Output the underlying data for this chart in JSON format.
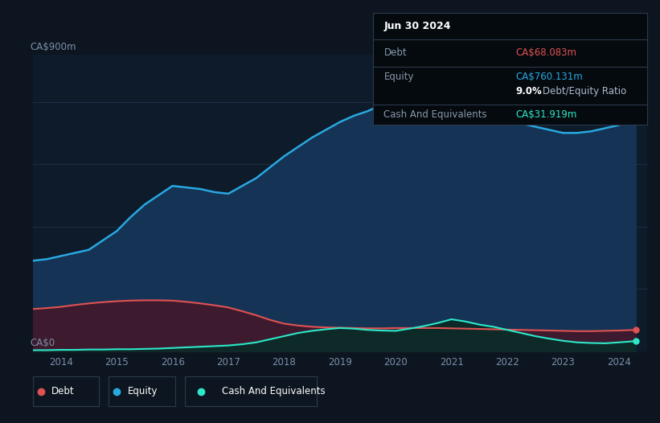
{
  "background_color": "#0d1520",
  "plot_bg_color": "#0d1b2a",
  "title_box": {
    "date": "Jun 30 2024",
    "debt_label": "Debt",
    "debt_value": "CA$68.083m",
    "debt_color": "#e05252",
    "equity_label": "Equity",
    "equity_value": "CA$760.131m",
    "equity_color": "#29a8e0",
    "ratio_bold": "9.0%",
    "ratio_text": "Debt/Equity Ratio",
    "cash_label": "Cash And Equivalents",
    "cash_value": "CA$31.919m",
    "cash_color": "#2de8c8"
  },
  "ylabel_top": "CA$900m",
  "ylabel_bottom": "CA$0",
  "x_ticks": [
    "2014",
    "2015",
    "2016",
    "2017",
    "2018",
    "2019",
    "2020",
    "2021",
    "2022",
    "2023",
    "2024"
  ],
  "legend": [
    {
      "label": "Debt",
      "color": "#e05252"
    },
    {
      "label": "Equity",
      "color": "#29a8e0"
    },
    {
      "label": "Cash And Equivalents",
      "color": "#2de8c8"
    }
  ],
  "equity_color": "#29a8e0",
  "equity_fill": "#153355",
  "debt_color": "#e05252",
  "debt_fill": "#3d1a2e",
  "cash_color": "#2de8c8",
  "cash_fill": "#0d2a28",
  "grid_color": "#1e3048",
  "years": [
    2013.5,
    2013.75,
    2014.0,
    2014.25,
    2014.5,
    2014.75,
    2015.0,
    2015.25,
    2015.5,
    2015.75,
    2016.0,
    2016.25,
    2016.5,
    2016.75,
    2017.0,
    2017.25,
    2017.5,
    2017.75,
    2018.0,
    2018.25,
    2018.5,
    2018.75,
    2019.0,
    2019.25,
    2019.5,
    2019.75,
    2020.0,
    2020.25,
    2020.5,
    2020.75,
    2021.0,
    2021.25,
    2021.5,
    2021.75,
    2022.0,
    2022.25,
    2022.5,
    2022.75,
    2023.0,
    2023.25,
    2023.5,
    2023.75,
    2024.0,
    2024.3
  ],
  "equity": [
    290,
    295,
    305,
    315,
    325,
    355,
    385,
    430,
    470,
    500,
    530,
    525,
    520,
    510,
    505,
    530,
    555,
    590,
    625,
    655,
    685,
    710,
    735,
    755,
    770,
    790,
    810,
    830,
    825,
    815,
    800,
    790,
    775,
    760,
    745,
    730,
    720,
    710,
    700,
    700,
    705,
    715,
    725,
    760
  ],
  "debt": [
    135,
    138,
    142,
    148,
    153,
    157,
    160,
    162,
    163,
    163,
    162,
    158,
    153,
    147,
    140,
    128,
    115,
    100,
    88,
    82,
    78,
    76,
    75,
    74,
    73,
    73,
    74,
    74,
    74,
    74,
    73,
    72,
    71,
    70,
    69,
    68,
    67,
    66,
    65,
    64,
    64,
    65,
    66,
    68
  ],
  "cash": [
    3,
    3,
    4,
    4,
    5,
    5,
    6,
    6,
    7,
    8,
    10,
    12,
    14,
    16,
    18,
    22,
    28,
    38,
    48,
    58,
    65,
    70,
    74,
    72,
    68,
    66,
    65,
    72,
    80,
    90,
    102,
    95,
    85,
    78,
    68,
    58,
    48,
    40,
    33,
    28,
    26,
    25,
    28,
    32
  ]
}
